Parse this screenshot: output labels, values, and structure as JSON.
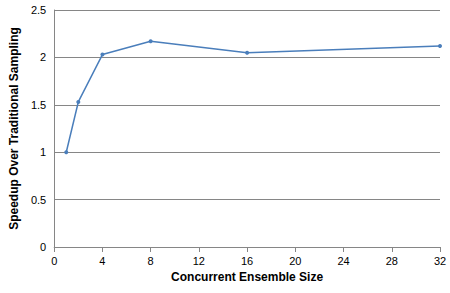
{
  "chart_data": {
    "type": "line",
    "x_label": "Concurrent Ensemble Size",
    "y_label": "Speedup Over Traditional Sampling",
    "x": [
      1,
      2,
      4,
      8,
      16,
      32
    ],
    "values": [
      1.0,
      1.53,
      2.03,
      2.17,
      2.05,
      2.12
    ],
    "color": "#4a7ebb",
    "marker": "circle",
    "line_style": "solid",
    "xlim": [
      0,
      32
    ],
    "xticks": [
      0,
      4,
      8,
      12,
      16,
      20,
      24,
      28,
      32
    ],
    "ylim": [
      0,
      2.5
    ],
    "yticks": [
      0,
      0.5,
      1,
      1.5,
      2,
      2.5
    ],
    "grid": true
  }
}
